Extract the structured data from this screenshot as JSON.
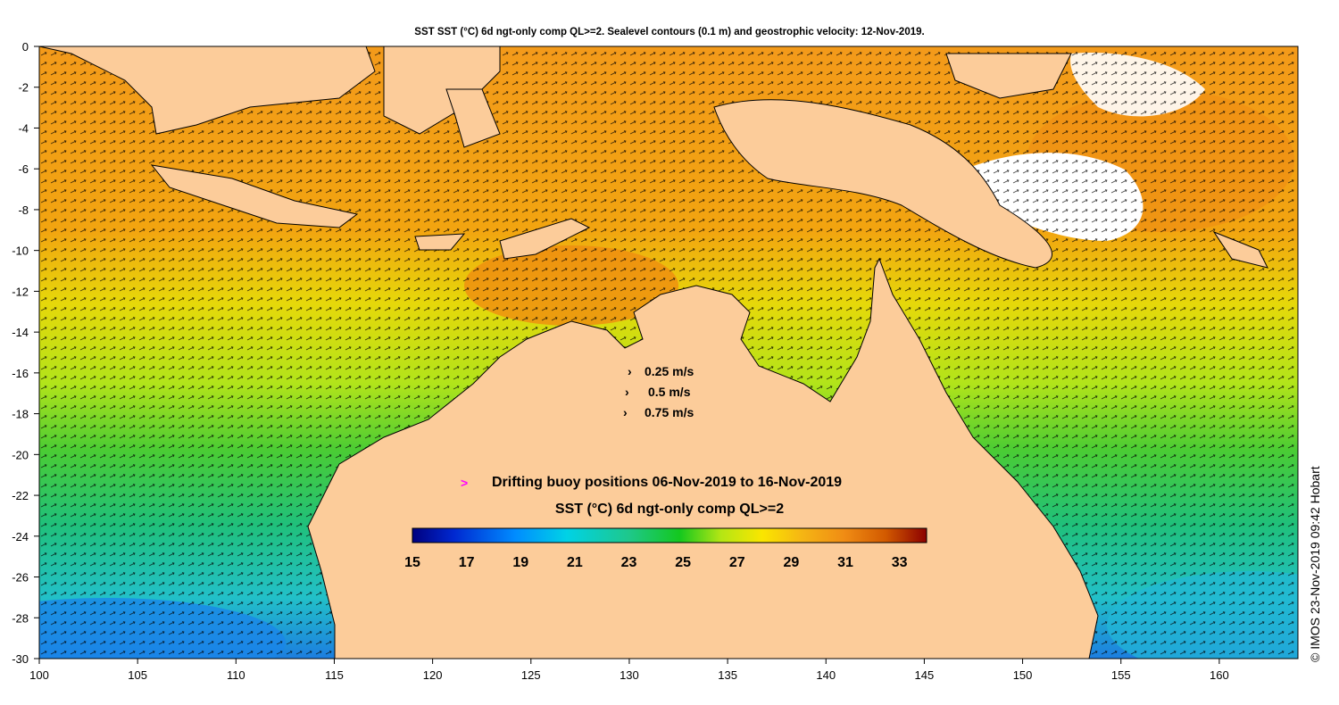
{
  "title": "SST SST (°C) 6d ngt-only comp QL>=2. Sealevel contours (0.1 m) and geostrophic velocity: 12-Nov-2019.",
  "credit": "© IMOS 23-Nov-2019 09:42 Hobart",
  "axes": {
    "x_ticks": [
      "100",
      "105",
      "110",
      "115",
      "120",
      "125",
      "130",
      "135",
      "140",
      "145",
      "150",
      "155",
      "160"
    ],
    "y_ticks": [
      "0",
      "-2",
      "-4",
      "-6",
      "-8",
      "-10",
      "-12",
      "-14",
      "-16",
      "-18",
      "-20",
      "-22",
      "-24",
      "-26",
      "-28",
      "-30"
    ],
    "lon_range": [
      100,
      164
    ],
    "lat_range": [
      -30,
      0
    ]
  },
  "velocity_legend": {
    "items": [
      {
        "label": "0.25 m/s"
      },
      {
        "label": "0.5 m/s"
      },
      {
        "label": "0.75 m/s"
      }
    ]
  },
  "buoy_legend": {
    "symbol": ">",
    "symbol_color": "#ff00ff",
    "label": "Drifting buoy positions 06-Nov-2019 to 16-Nov-2019"
  },
  "colorbar": {
    "title": "SST (°C) 6d ngt-only comp QL>=2",
    "ticks": [
      "15",
      "17",
      "19",
      "21",
      "23",
      "25",
      "27",
      "29",
      "31",
      "33"
    ],
    "range": [
      15,
      34
    ]
  },
  "colors": {
    "land": "#fccc9a",
    "sst_stops": [
      "#00007f",
      "#0028d0",
      "#008cff",
      "#00d2e6",
      "#1ec88c",
      "#14c81e",
      "#b4e614",
      "#fae600",
      "#f5b414",
      "#f08c14",
      "#d25a00",
      "#a01400",
      "#8c0000"
    ]
  }
}
